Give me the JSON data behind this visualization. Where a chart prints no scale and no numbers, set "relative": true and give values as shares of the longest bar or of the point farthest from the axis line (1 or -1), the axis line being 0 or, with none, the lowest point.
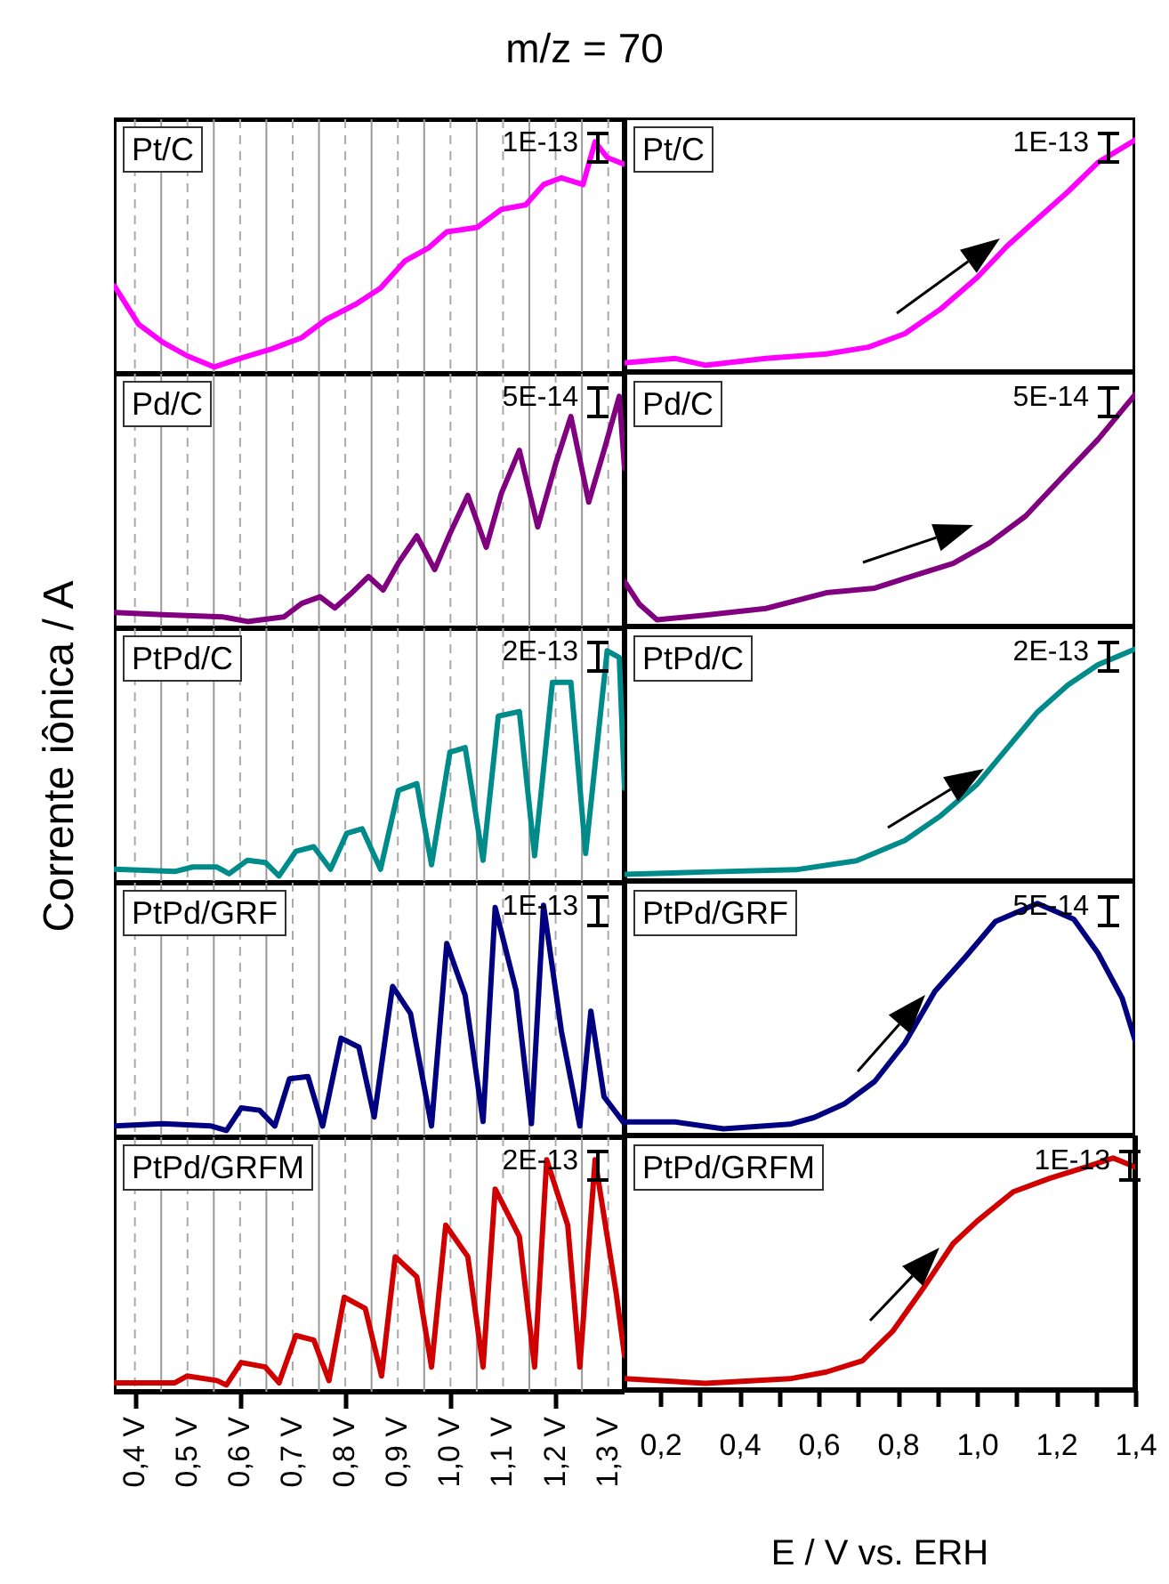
{
  "chart_data": [
    {
      "type": "line",
      "relative": true,
      "title": "m/z = 70",
      "ylabel": "Corrente iônica / A",
      "annotations": [
        "Pt/C",
        "1E-13"
      ],
      "grid": "x",
      "tick_labels": false,
      "xlim": [
        0.36,
        1.331
      ],
      "xticks": [
        0.4,
        0.5,
        0.6,
        0.7,
        0.8,
        0.9,
        1.0,
        1.1,
        1.2,
        1.3,
        {
          "value": 0.45,
          "label": null
        },
        {
          "value": 0.55,
          "label": null
        },
        {
          "value": 0.65,
          "label": null
        },
        {
          "value": 0.75,
          "label": null
        },
        {
          "value": 0.85,
          "label": null
        },
        {
          "value": 0.95,
          "label": null
        },
        {
          "value": 1.05,
          "label": null
        },
        {
          "value": 1.15,
          "label": null
        },
        {
          "value": 1.25,
          "label": null
        }
      ],
      "x": [
        0.361,
        0.407,
        0.453,
        0.499,
        0.551,
        0.602,
        0.66,
        0.717,
        0.763,
        0.821,
        0.867,
        0.913,
        0.959,
        0.993,
        1.051,
        1.097,
        1.143,
        1.177,
        1.211,
        1.252,
        1.275,
        1.298,
        1.331
      ],
      "series": [
        {
          "color": "#ff00ff",
          "values": [
            0.36,
            0.19,
            0.11,
            0.05,
            0,
            0.04,
            0.08,
            0.13,
            0.21,
            0.28,
            0.35,
            0.47,
            0.53,
            0.6,
            0.62,
            0.7,
            0.72,
            0.81,
            0.84,
            0.81,
            1.0,
            0.93,
            0.9
          ]
        }
      ]
    },
    {
      "type": "line",
      "relative": true,
      "annotations": [
        "Pt/C",
        "1E-13"
      ],
      "tick_labels": false,
      "xlim": [
        0.11,
        1.4
      ],
      "x": [
        0.11,
        0.238,
        0.314,
        0.467,
        0.62,
        0.726,
        0.818,
        0.909,
        1.001,
        1.077,
        1.153,
        1.23,
        1.306,
        1.4
      ],
      "series": [
        {
          "color": "#ff00ff",
          "values": [
            0.01,
            0.03,
            0,
            0.03,
            0.05,
            0.08,
            0.14,
            0.25,
            0.39,
            0.53,
            0.65,
            0.77,
            0.9,
            1.0
          ]
        }
      ]
    },
    {
      "type": "line",
      "relative": true,
      "annotations": [
        "Pd/C",
        "5E-14"
      ],
      "grid": "x",
      "tick_labels": false,
      "xlim": [
        0.36,
        1.331
      ],
      "xticks": [
        0.4,
        0.5,
        0.6,
        0.7,
        0.8,
        0.9,
        1.0,
        1.1,
        1.2,
        1.3,
        {
          "value": 0.45,
          "label": null
        },
        {
          "value": 0.55,
          "label": null
        },
        {
          "value": 0.65,
          "label": null
        },
        {
          "value": 0.75,
          "label": null
        },
        {
          "value": 0.85,
          "label": null
        },
        {
          "value": 0.95,
          "label": null
        },
        {
          "value": 1.05,
          "label": null
        },
        {
          "value": 1.15,
          "label": null
        },
        {
          "value": 1.25,
          "label": null
        }
      ],
      "x": [
        0.361,
        0.453,
        0.568,
        0.614,
        0.683,
        0.717,
        0.752,
        0.78,
        0.809,
        0.844,
        0.872,
        0.901,
        0.936,
        0.97,
        0.999,
        1.033,
        1.068,
        1.097,
        1.131,
        1.166,
        1.2,
        1.229,
        1.263,
        1.292,
        1.321,
        1.331
      ],
      "series": [
        {
          "color": "#800080",
          "values": [
            0.04,
            0.03,
            0.02,
            0,
            0.02,
            0.08,
            0.11,
            0.06,
            0.12,
            0.2,
            0.14,
            0.26,
            0.38,
            0.23,
            0.39,
            0.56,
            0.33,
            0.57,
            0.76,
            0.42,
            0.7,
            0.91,
            0.53,
            0.76,
            1.0,
            0.68
          ]
        }
      ]
    },
    {
      "type": "line",
      "relative": true,
      "annotations": [
        "Pd/C",
        "5E-14"
      ],
      "tick_labels": false,
      "xlim": [
        0.11,
        1.4
      ],
      "x": [
        0.11,
        0.147,
        0.192,
        0.314,
        0.467,
        0.62,
        0.742,
        0.848,
        0.94,
        1.031,
        1.123,
        1.214,
        1.306,
        1.4
      ],
      "series": [
        {
          "color": "#800080",
          "values": [
            0.17,
            0.07,
            0,
            0.02,
            0.05,
            0.12,
            0.14,
            0.2,
            0.25,
            0.34,
            0.46,
            0.63,
            0.8,
            1.0
          ]
        }
      ]
    },
    {
      "type": "line",
      "relative": true,
      "annotations": [
        "PtPd/C",
        "2E-13"
      ],
      "grid": "x",
      "tick_labels": false,
      "xlim": [
        0.36,
        1.331
      ],
      "xticks": [
        0.4,
        0.5,
        0.6,
        0.7,
        0.8,
        0.9,
        1.0,
        1.1,
        1.2,
        1.3,
        {
          "value": 0.45,
          "label": null
        },
        {
          "value": 0.55,
          "label": null
        },
        {
          "value": 0.65,
          "label": null
        },
        {
          "value": 0.75,
          "label": null
        },
        {
          "value": 0.85,
          "label": null
        },
        {
          "value": 0.95,
          "label": null
        },
        {
          "value": 1.05,
          "label": null
        },
        {
          "value": 1.15,
          "label": null
        },
        {
          "value": 1.25,
          "label": null
        }
      ],
      "x": [
        0.361,
        0.476,
        0.51,
        0.556,
        0.579,
        0.614,
        0.648,
        0.674,
        0.706,
        0.74,
        0.772,
        0.803,
        0.832,
        0.867,
        0.901,
        0.936,
        0.964,
        0.999,
        1.028,
        1.062,
        1.091,
        1.131,
        1.16,
        1.194,
        1.229,
        1.257,
        1.298,
        1.321,
        1.331
      ],
      "series": [
        {
          "color": "#008b8b",
          "values": [
            0.03,
            0.02,
            0.04,
            0.04,
            0.01,
            0.07,
            0.06,
            0,
            0.11,
            0.13,
            0.03,
            0.19,
            0.21,
            0.03,
            0.38,
            0.41,
            0.05,
            0.55,
            0.57,
            0.07,
            0.71,
            0.73,
            0.09,
            0.86,
            0.86,
            0.1,
            1.0,
            0.97,
            0.39
          ]
        }
      ]
    },
    {
      "type": "line",
      "relative": true,
      "annotations": [
        "PtPd/C",
        "2E-13"
      ],
      "tick_labels": false,
      "xlim": [
        0.11,
        1.4
      ],
      "x": [
        0.11,
        0.314,
        0.543,
        0.696,
        0.818,
        0.909,
        1.001,
        1.077,
        1.153,
        1.23,
        1.306,
        1.4
      ],
      "series": [
        {
          "color": "#008b8b",
          "values": [
            0,
            0.01,
            0.02,
            0.06,
            0.15,
            0.26,
            0.4,
            0.56,
            0.72,
            0.84,
            0.93,
            1.0
          ]
        }
      ]
    },
    {
      "type": "line",
      "relative": true,
      "annotations": [
        "PtPd/GRF",
        "1E-13"
      ],
      "grid": "x",
      "tick_labels": false,
      "xlim": [
        0.36,
        1.331
      ],
      "xticks": [
        0.4,
        0.5,
        0.6,
        0.7,
        0.8,
        0.9,
        1.0,
        1.1,
        1.2,
        1.3,
        {
          "value": 0.45,
          "label": null
        },
        {
          "value": 0.55,
          "label": null
        },
        {
          "value": 0.65,
          "label": null
        },
        {
          "value": 0.75,
          "label": null
        },
        {
          "value": 0.85,
          "label": null
        },
        {
          "value": 0.95,
          "label": null
        },
        {
          "value": 1.05,
          "label": null
        },
        {
          "value": 1.15,
          "label": null
        },
        {
          "value": 1.25,
          "label": null
        }
      ],
      "x": [
        0.361,
        0.453,
        0.545,
        0.574,
        0.602,
        0.637,
        0.666,
        0.694,
        0.729,
        0.757,
        0.792,
        0.826,
        0.855,
        0.89,
        0.924,
        0.964,
        0.993,
        1.028,
        1.062,
        1.085,
        1.125,
        1.154,
        1.177,
        1.211,
        1.246,
        1.267,
        1.292,
        1.331
      ],
      "series": [
        {
          "color": "#000080",
          "values": [
            0.02,
            0.03,
            0.02,
            0,
            0.1,
            0.09,
            0.02,
            0.23,
            0.24,
            0.02,
            0.41,
            0.37,
            0.06,
            0.64,
            0.52,
            0.02,
            0.83,
            0.6,
            0.04,
            0.99,
            0.62,
            0.03,
            1.0,
            0.44,
            0.02,
            0.53,
            0.15,
            0.03
          ]
        }
      ]
    },
    {
      "type": "line",
      "relative": true,
      "annotations": [
        "PtPd/GRF",
        "5E-14"
      ],
      "tick_labels": false,
      "xlim": [
        0.11,
        1.4
      ],
      "x": [
        0.11,
        0.238,
        0.36,
        0.528,
        0.589,
        0.665,
        0.742,
        0.818,
        0.894,
        0.97,
        1.047,
        1.153,
        1.245,
        1.306,
        1.367,
        1.4
      ],
      "series": [
        {
          "color": "#000080",
          "values": [
            0.03,
            0.03,
            0,
            0.02,
            0.05,
            0.11,
            0.21,
            0.38,
            0.61,
            0.76,
            0.92,
            1.0,
            0.93,
            0.78,
            0.58,
            0.39
          ]
        }
      ]
    },
    {
      "type": "line",
      "relative": true,
      "annotations": [
        "PtPd/GRFM",
        "2E-13"
      ],
      "grid": "x",
      "tick_labels": "x",
      "xlim": [
        0.36,
        1.331
      ],
      "xticks": [
        {
          "value": 0.4,
          "label": "0,4 V"
        },
        {
          "value": 0.5,
          "label": "0,5 V"
        },
        {
          "value": 0.6,
          "label": "0,6 V"
        },
        {
          "value": 0.7,
          "label": "0,7 V"
        },
        {
          "value": 0.8,
          "label": "0,8 V"
        },
        {
          "value": 0.9,
          "label": "0,9 V"
        },
        {
          "value": 1.0,
          "label": "1,0 V"
        },
        {
          "value": 1.1,
          "label": "1,1 V"
        },
        {
          "value": 1.2,
          "label": "1,2 V"
        },
        {
          "value": 1.3,
          "label": "1,3 V"
        },
        {
          "value": 0.45,
          "label": null
        },
        {
          "value": 0.55,
          "label": null
        },
        {
          "value": 0.65,
          "label": null
        },
        {
          "value": 0.75,
          "label": null
        },
        {
          "value": 0.85,
          "label": null
        },
        {
          "value": 0.95,
          "label": null
        },
        {
          "value": 1.05,
          "label": null
        },
        {
          "value": 1.15,
          "label": null
        },
        {
          "value": 1.25,
          "label": null
        }
      ],
      "x": [
        0.361,
        0.476,
        0.499,
        0.556,
        0.574,
        0.602,
        0.648,
        0.674,
        0.706,
        0.74,
        0.769,
        0.798,
        0.838,
        0.869,
        0.895,
        0.936,
        0.964,
        0.991,
        1.033,
        1.062,
        1.085,
        1.131,
        1.16,
        1.183,
        1.223,
        1.246,
        1.275,
        1.315,
        1.331
      ],
      "series": [
        {
          "color": "#d00000",
          "values": [
            0.01,
            0.01,
            0.04,
            0.02,
            0,
            0.1,
            0.08,
            0.01,
            0.22,
            0.2,
            0.02,
            0.39,
            0.34,
            0.04,
            0.57,
            0.48,
            0.08,
            0.71,
            0.57,
            0.08,
            0.87,
            0.66,
            0.08,
            1.0,
            0.71,
            0.08,
            1.0,
            0.41,
            0.13
          ]
        }
      ]
    },
    {
      "type": "line",
      "relative": true,
      "xlabel": "E / V vs. ERH",
      "annotations": [
        "PtPd/GRFM",
        "1E-13"
      ],
      "tick_labels": "x",
      "xlim": [
        0.11,
        1.4
      ],
      "xticks": [
        {
          "value": 0.2,
          "label": "0,2"
        },
        {
          "value": 0.4,
          "label": "0,4"
        },
        {
          "value": 0.6,
          "label": "0,6"
        },
        {
          "value": 0.8,
          "label": "0,8"
        },
        {
          "value": 1.0,
          "label": "1,0"
        },
        {
          "value": 1.2,
          "label": "1,2"
        },
        {
          "value": 1.4,
          "label": "1,4"
        },
        {
          "value": 0.3,
          "label": null
        },
        {
          "value": 0.5,
          "label": null
        },
        {
          "value": 0.7,
          "label": null
        },
        {
          "value": 0.9,
          "label": null
        },
        {
          "value": 1.1,
          "label": null
        },
        {
          "value": 1.3,
          "label": null
        }
      ],
      "x": [
        0.11,
        0.314,
        0.528,
        0.62,
        0.711,
        0.787,
        0.864,
        0.94,
        1.001,
        1.092,
        1.184,
        1.276,
        1.344,
        1.4
      ],
      "series": [
        {
          "color": "#d00000",
          "values": [
            0.02,
            0,
            0.02,
            0.05,
            0.1,
            0.23,
            0.42,
            0.62,
            0.72,
            0.85,
            0.91,
            0.96,
            1.0,
            0.96
          ]
        }
      ]
    }
  ]
}
